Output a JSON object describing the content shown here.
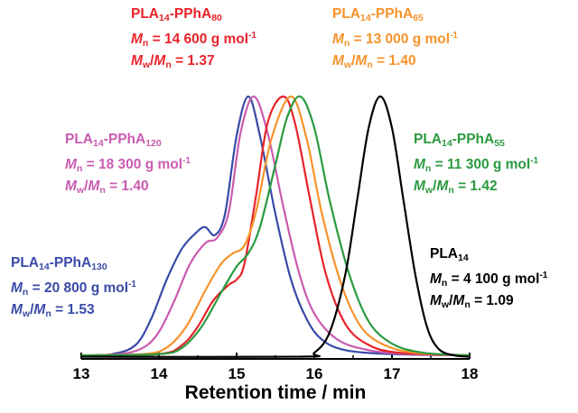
{
  "chart_data": {
    "type": "line",
    "xlabel": "Retention time / min",
    "ylabel": "",
    "xlim": [
      13,
      18
    ],
    "xticks": [
      "13",
      "14",
      "15",
      "16",
      "17",
      "18"
    ],
    "grid": false,
    "legend": "labels next to curves",
    "series": [
      {
        "name": "PLA14-PPhA130",
        "color": "#3a4aa8",
        "label": {
          "name_base": "PLA",
          "name_sub1": "14",
          "name_mid": "-PPhA",
          "name_sub2": "130",
          "mn_value": "= 20 800 g mol",
          "mn_unit_sup": "-1",
          "disp_value": "= 1.53"
        },
        "peak_time": 15.15,
        "points": [
          [
            13,
            0.01
          ],
          [
            13.4,
            0.015
          ],
          [
            13.7,
            0.05
          ],
          [
            13.9,
            0.15
          ],
          [
            14.1,
            0.3
          ],
          [
            14.3,
            0.42
          ],
          [
            14.5,
            0.485
          ],
          [
            14.6,
            0.5
          ],
          [
            14.72,
            0.47
          ],
          [
            14.85,
            0.55
          ],
          [
            15.0,
            0.85
          ],
          [
            15.15,
            1.0
          ],
          [
            15.3,
            0.85
          ],
          [
            15.5,
            0.55
          ],
          [
            15.7,
            0.3
          ],
          [
            15.9,
            0.15
          ],
          [
            16.1,
            0.07
          ],
          [
            16.4,
            0.03
          ],
          [
            17,
            0.015
          ],
          [
            18,
            0.01
          ]
        ]
      },
      {
        "name": "PLA14-PPhA120",
        "color": "#c95bb0",
        "label": {
          "name_base": "PLA",
          "name_sub1": "14",
          "name_mid": "-PPhA",
          "name_sub2": "120",
          "mn_value": "= 18 300 g mol",
          "mn_unit_sup": "-1",
          "disp_value": "= 1.40"
        },
        "peak_time": 15.22,
        "points": [
          [
            13,
            0.01
          ],
          [
            13.5,
            0.015
          ],
          [
            13.8,
            0.04
          ],
          [
            14.0,
            0.1
          ],
          [
            14.2,
            0.22
          ],
          [
            14.4,
            0.36
          ],
          [
            14.6,
            0.44
          ],
          [
            14.75,
            0.46
          ],
          [
            14.9,
            0.56
          ],
          [
            15.05,
            0.86
          ],
          [
            15.22,
            1.0
          ],
          [
            15.4,
            0.86
          ],
          [
            15.6,
            0.58
          ],
          [
            15.8,
            0.33
          ],
          [
            16.0,
            0.17
          ],
          [
            16.3,
            0.07
          ],
          [
            16.7,
            0.03
          ],
          [
            17.2,
            0.015
          ],
          [
            18,
            0.01
          ]
        ]
      },
      {
        "name": "PLA14-PPhA80",
        "color": "#e8232a",
        "label": {
          "name_base": "PLA",
          "name_sub1": "14",
          "name_mid": "-PPhA",
          "name_sub2": "80",
          "mn_value": "= 14 600 g mol",
          "mn_unit_sup": "-1",
          "disp_value": "= 1.37"
        },
        "peak_time": 15.6,
        "points": [
          [
            13,
            0.01
          ],
          [
            14.0,
            0.015
          ],
          [
            14.3,
            0.05
          ],
          [
            14.5,
            0.12
          ],
          [
            14.7,
            0.22
          ],
          [
            14.9,
            0.28
          ],
          [
            15.0,
            0.3
          ],
          [
            15.1,
            0.36
          ],
          [
            15.25,
            0.62
          ],
          [
            15.4,
            0.9
          ],
          [
            15.6,
            1.0
          ],
          [
            15.75,
            0.9
          ],
          [
            15.95,
            0.6
          ],
          [
            16.15,
            0.32
          ],
          [
            16.4,
            0.13
          ],
          [
            16.7,
            0.05
          ],
          [
            17.1,
            0.02
          ],
          [
            18,
            0.01
          ]
        ]
      },
      {
        "name": "PLA14-PPhA65",
        "color": "#f7932b",
        "label": {
          "name_base": "PLA",
          "name_sub1": "14",
          "name_mid": "-PPhA",
          "name_sub2": "65",
          "mn_value": "= 13 000 g mol",
          "mn_unit_sup": "-1",
          "disp_value": "= 1.40"
        },
        "peak_time": 15.7,
        "points": [
          [
            13,
            0.01
          ],
          [
            13.8,
            0.015
          ],
          [
            14.1,
            0.04
          ],
          [
            14.35,
            0.12
          ],
          [
            14.6,
            0.26
          ],
          [
            14.8,
            0.36
          ],
          [
            14.95,
            0.4
          ],
          [
            15.1,
            0.43
          ],
          [
            15.25,
            0.56
          ],
          [
            15.45,
            0.84
          ],
          [
            15.7,
            1.0
          ],
          [
            15.9,
            0.84
          ],
          [
            16.1,
            0.55
          ],
          [
            16.35,
            0.28
          ],
          [
            16.6,
            0.12
          ],
          [
            16.9,
            0.05
          ],
          [
            17.3,
            0.02
          ],
          [
            18,
            0.01
          ]
        ]
      },
      {
        "name": "PLA14-PPhA55",
        "color": "#2a9a3f",
        "label": {
          "name_base": "PLA",
          "name_sub1": "14",
          "name_mid": "-PPhA",
          "name_sub2": "55",
          "mn_value": "= 11 300 g mol",
          "mn_unit_sup": "-1",
          "disp_value": "= 1.42"
        },
        "peak_time": 15.82,
        "points": [
          [
            13,
            0.01
          ],
          [
            14.0,
            0.015
          ],
          [
            14.3,
            0.04
          ],
          [
            14.55,
            0.12
          ],
          [
            14.8,
            0.25
          ],
          [
            15.0,
            0.35
          ],
          [
            15.15,
            0.4
          ],
          [
            15.3,
            0.5
          ],
          [
            15.5,
            0.74
          ],
          [
            15.65,
            0.92
          ],
          [
            15.82,
            1.0
          ],
          [
            16.0,
            0.88
          ],
          [
            16.2,
            0.6
          ],
          [
            16.45,
            0.32
          ],
          [
            16.7,
            0.14
          ],
          [
            17.0,
            0.055
          ],
          [
            17.4,
            0.02
          ],
          [
            18,
            0.01
          ]
        ]
      },
      {
        "name": "PLA14",
        "color": "#000000",
        "label": {
          "name_base": "PLA",
          "name_sub1": "14",
          "mn_value": "= 4 100 g mol",
          "mn_unit_sup": "-1",
          "disp_value": "= 1.09"
        },
        "peak_time": 16.85,
        "points": [
          [
            13,
            0.005
          ],
          [
            15.8,
            0.005
          ],
          [
            16.0,
            0.02
          ],
          [
            16.2,
            0.1
          ],
          [
            16.4,
            0.32
          ],
          [
            16.55,
            0.6
          ],
          [
            16.7,
            0.88
          ],
          [
            16.85,
            1.0
          ],
          [
            17.0,
            0.88
          ],
          [
            17.15,
            0.6
          ],
          [
            17.3,
            0.32
          ],
          [
            17.45,
            0.12
          ],
          [
            17.6,
            0.035
          ],
          [
            17.8,
            0.01
          ],
          [
            18,
            0.005
          ]
        ]
      }
    ]
  }
}
